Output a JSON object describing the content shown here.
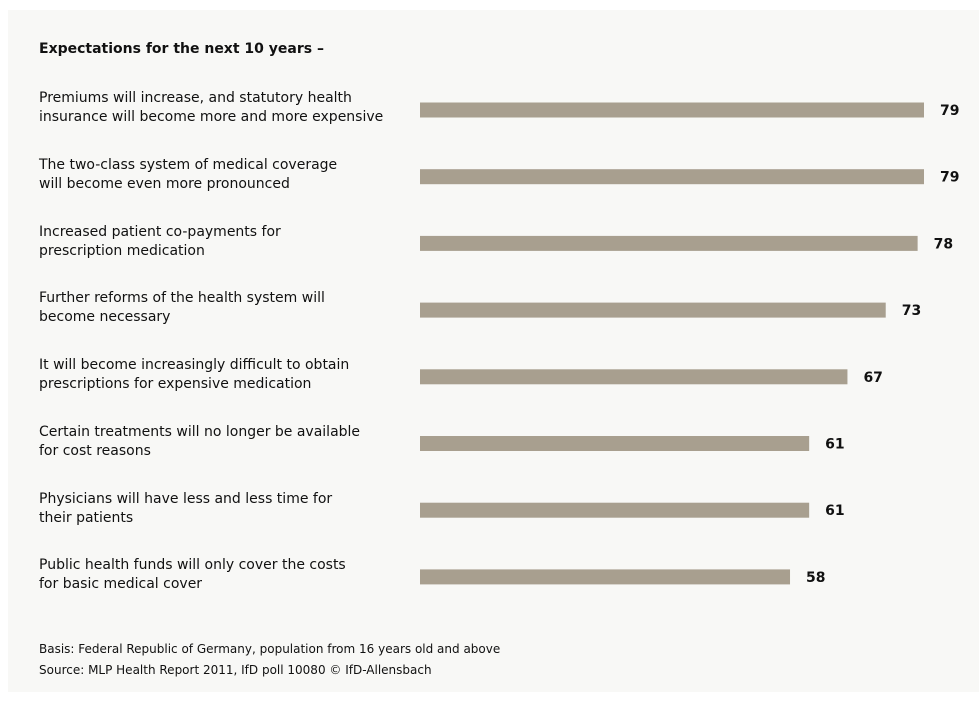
{
  "colors": {
    "bar": "#a89f8f",
    "panel_background": "#f8f8f6",
    "text": "#111111"
  },
  "footnotes": {
    "basis": "Basis: Federal Republic of Germany, population from 16 years old and above",
    "source": "Source: MLP Health Report 2011, IfD poll 10080 © IfD-Allensbach"
  },
  "chart_data": {
    "type": "bar",
    "orientation": "horizontal",
    "title": "Expectations for the next 10 years –",
    "xlabel": "",
    "ylabel": "",
    "grid": false,
    "xlim": [
      0,
      79
    ],
    "categories": [
      [
        "Premiums will increase, and statutory health",
        "insurance will become more and more expensive"
      ],
      [
        "The two-class system of medical coverage",
        "will become even more pronounced"
      ],
      [
        "Increased patient co-payments for",
        "prescription medication"
      ],
      [
        "Further reforms of the health system will",
        "become necessary"
      ],
      [
        "It will become increasingly difficult to obtain",
        "prescriptions for expensive medication"
      ],
      [
        "Certain treatments will no longer be available",
        "for cost reasons"
      ],
      [
        "Physicians will have less and less time for",
        "their patients"
      ],
      [
        "Public health funds will only cover the costs",
        "for basic medical cover"
      ]
    ],
    "values": [
      79,
      79,
      78,
      73,
      67,
      61,
      61,
      58
    ]
  }
}
